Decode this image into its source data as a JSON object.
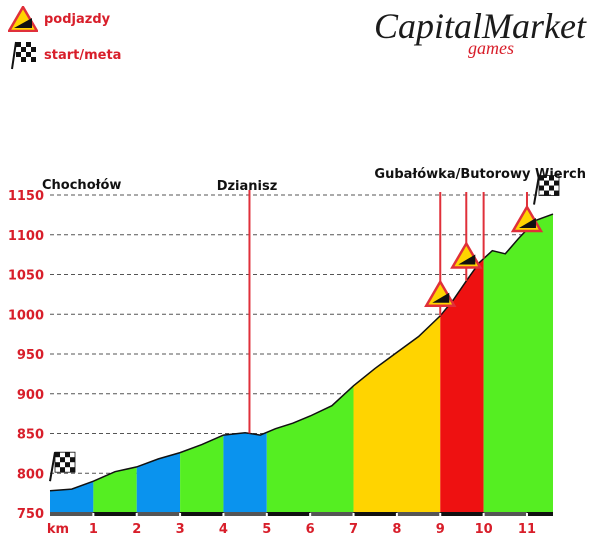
{
  "legend": {
    "climbs_label": "podjazdy",
    "start_finish_label": "start/meta"
  },
  "logo": {
    "line1": "CapitalMarket",
    "line2": "games"
  },
  "colors": {
    "green": "#55ee22",
    "blue": "#0a93ee",
    "yellow": "#ffd400",
    "red": "#ee1111",
    "outline": "#111111",
    "marker_line": "#e0303a",
    "axis_text": "#d81e2a",
    "label_text": "#111111"
  },
  "chart_data": {
    "type": "area",
    "title": "",
    "xlabel": "km",
    "ylabel": "",
    "xlim": [
      0,
      11.6
    ],
    "ylim": [
      750,
      1150
    ],
    "x_ticks": [
      1,
      2,
      3,
      4,
      5,
      6,
      7,
      8,
      9,
      10,
      11
    ],
    "y_ticks": [
      750,
      800,
      850,
      900,
      950,
      1000,
      1050,
      1100,
      1150
    ],
    "grid": true,
    "profile": [
      [
        0,
        778
      ],
      [
        0.5,
        780
      ],
      [
        1.0,
        790
      ],
      [
        1.5,
        802
      ],
      [
        2.0,
        808
      ],
      [
        2.5,
        818
      ],
      [
        3.0,
        826
      ],
      [
        3.5,
        836
      ],
      [
        4.0,
        848
      ],
      [
        4.5,
        851
      ],
      [
        4.85,
        848
      ],
      [
        5.2,
        856
      ],
      [
        5.6,
        863
      ],
      [
        6.0,
        872
      ],
      [
        6.5,
        885
      ],
      [
        7.0,
        910
      ],
      [
        7.5,
        932
      ],
      [
        8.0,
        952
      ],
      [
        8.5,
        972
      ],
      [
        9.0,
        998
      ],
      [
        9.3,
        1018
      ],
      [
        9.6,
        1042
      ],
      [
        9.9,
        1065
      ],
      [
        10.2,
        1080
      ],
      [
        10.5,
        1076
      ],
      [
        10.8,
        1095
      ],
      [
        11.2,
        1118
      ],
      [
        11.6,
        1126
      ]
    ],
    "segments": [
      {
        "from": 0,
        "to": 1,
        "color": "blue"
      },
      {
        "from": 1,
        "to": 2,
        "color": "green"
      },
      {
        "from": 2,
        "to": 3,
        "color": "blue"
      },
      {
        "from": 3,
        "to": 4,
        "color": "green"
      },
      {
        "from": 4,
        "to": 5,
        "color": "blue"
      },
      {
        "from": 5,
        "to": 7,
        "color": "green"
      },
      {
        "from": 7,
        "to": 9,
        "color": "yellow"
      },
      {
        "from": 9,
        "to": 10,
        "color": "red"
      },
      {
        "from": 10,
        "to": 11.6,
        "color": "green"
      }
    ],
    "places": [
      {
        "label": "Chochołów",
        "km": 0,
        "marker_line": false
      },
      {
        "label": "Dzianisz",
        "km": 4.6,
        "marker_line": true
      },
      {
        "label": "Gubałówka/Butorowy Wierch",
        "km": 11.0,
        "marker_line": false
      }
    ],
    "climb_lines_km": [
      9.0,
      9.6,
      10.0,
      11.0
    ],
    "climb_icons": [
      {
        "km": 9.0,
        "alt": 1012
      },
      {
        "km": 9.6,
        "alt": 1060
      },
      {
        "km": 11.0,
        "alt": 1106
      }
    ],
    "start_flag": {
      "km": 0.3,
      "alt": 790
    },
    "finish_flag": {
      "km": 11.6,
      "alt": 1138
    }
  }
}
